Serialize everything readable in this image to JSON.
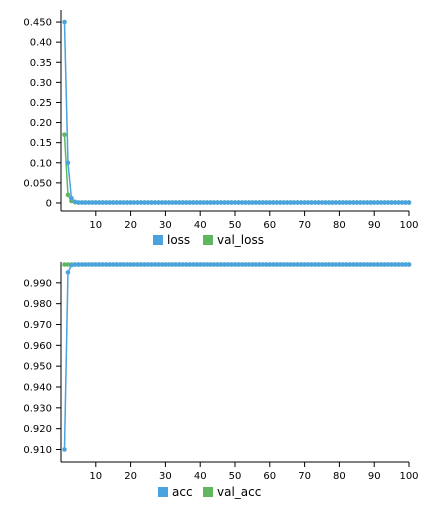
{
  "colors": {
    "series1": "#4aa3df",
    "series2": "#5fb760"
  },
  "chart_data": [
    {
      "type": "line",
      "title": "",
      "xlabel": "",
      "ylabel": "",
      "xlim": [
        0,
        100
      ],
      "ylim": [
        -0.02,
        0.48
      ],
      "x_ticks": [
        10,
        20,
        30,
        40,
        50,
        60,
        70,
        80,
        90,
        100
      ],
      "x_tick_labels": [
        "10",
        "20",
        "30",
        "40",
        "50",
        "60",
        "70",
        "80",
        "90",
        "100"
      ],
      "y_ticks": [
        0,
        0.05,
        0.1,
        0.15,
        0.2,
        0.25,
        0.3,
        0.35,
        0.4,
        0.45
      ],
      "y_tick_labels": [
        "0",
        "0.050",
        "0.10",
        "0.15",
        "0.20",
        "0.25",
        "0.30",
        "0.35",
        "0.40",
        "0.450"
      ],
      "grid": false,
      "legend": "bottom",
      "series": [
        {
          "name": "loss",
          "head": [
            0.45,
            0.1,
            0.012,
            0.003
          ],
          "tail": 0.001
        },
        {
          "name": "val_loss",
          "head": [
            0.17,
            0.02,
            0.005,
            0.002
          ],
          "tail": 0.001
        }
      ]
    },
    {
      "type": "line",
      "title": "",
      "xlabel": "",
      "ylabel": "",
      "xlim": [
        0,
        100
      ],
      "ylim": [
        0.904,
        1.0
      ],
      "x_ticks": [
        10,
        20,
        30,
        40,
        50,
        60,
        70,
        80,
        90,
        100
      ],
      "x_tick_labels": [
        "10",
        "20",
        "30",
        "40",
        "50",
        "60",
        "70",
        "80",
        "90",
        "100"
      ],
      "y_ticks": [
        0.91,
        0.92,
        0.93,
        0.94,
        0.95,
        0.96,
        0.97,
        0.98,
        0.99
      ],
      "y_tick_labels": [
        "0.910",
        "0.920",
        "0.930",
        "0.940",
        "0.950",
        "0.960",
        "0.970",
        "0.980",
        "0.990"
      ],
      "grid": false,
      "legend": "bottom",
      "series": [
        {
          "name": "acc",
          "head": [
            0.91,
            0.995,
            0.9985
          ],
          "tail": 0.9988
        },
        {
          "name": "val_acc",
          "head": [
            0.9988,
            0.9988
          ],
          "tail": 0.9988
        }
      ]
    }
  ]
}
